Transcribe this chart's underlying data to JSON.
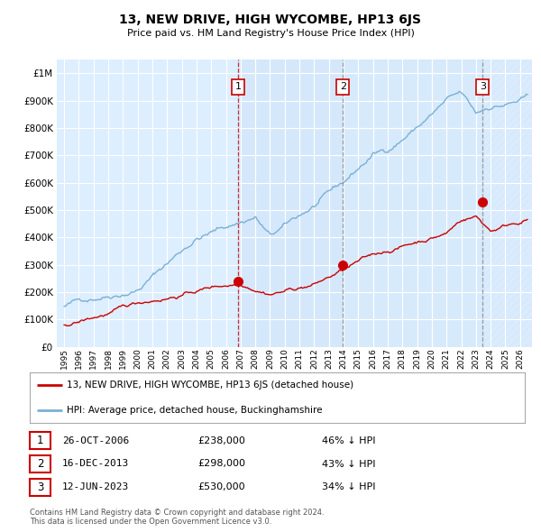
{
  "title": "13, NEW DRIVE, HIGH WYCOMBE, HP13 6JS",
  "subtitle": "Price paid vs. HM Land Registry's House Price Index (HPI)",
  "ytick_values": [
    0,
    100000,
    200000,
    300000,
    400000,
    500000,
    600000,
    700000,
    800000,
    900000,
    1000000
  ],
  "ylim": [
    0,
    1050000
  ],
  "xlim_start": 1994.5,
  "xlim_end": 2026.8,
  "background_color": "#ffffff",
  "plot_bg_color": "#ddeeff",
  "grid_color": "#ffffff",
  "hpi_color": "#7ab0d4",
  "price_color": "#cc0000",
  "sale_dates": [
    2006.82,
    2013.96,
    2023.46
  ],
  "sale_prices": [
    238000,
    298000,
    530000
  ],
  "sale_labels": [
    "1",
    "2",
    "3"
  ],
  "legend_items": [
    {
      "label": "13, NEW DRIVE, HIGH WYCOMBE, HP13 6JS (detached house)",
      "color": "#cc0000"
    },
    {
      "label": "HPI: Average price, detached house, Buckinghamshire",
      "color": "#7ab0d4"
    }
  ],
  "table_rows": [
    {
      "num": "1",
      "date": "26-OCT-2006",
      "price": "£238,000",
      "hpi": "46% ↓ HPI"
    },
    {
      "num": "2",
      "date": "16-DEC-2013",
      "price": "£298,000",
      "hpi": "43% ↓ HPI"
    },
    {
      "num": "3",
      "date": "12-JUN-2023",
      "price": "£530,000",
      "hpi": "34% ↓ HPI"
    }
  ],
  "footer": "Contains HM Land Registry data © Crown copyright and database right 2024.\nThis data is licensed under the Open Government Licence v3.0.",
  "xtick_years": [
    1995,
    1996,
    1997,
    1998,
    1999,
    2000,
    2001,
    2002,
    2003,
    2004,
    2005,
    2006,
    2007,
    2008,
    2009,
    2010,
    2011,
    2012,
    2013,
    2014,
    2015,
    2016,
    2017,
    2018,
    2019,
    2020,
    2021,
    2022,
    2023,
    2024,
    2025,
    2026
  ]
}
